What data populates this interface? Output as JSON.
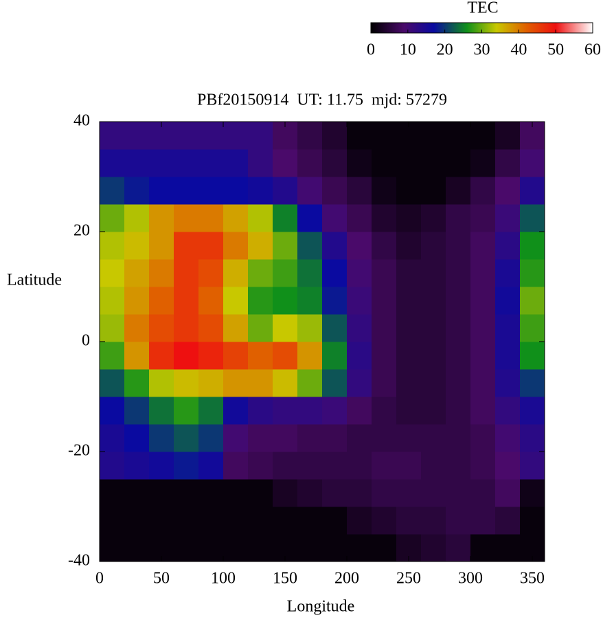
{
  "chart_data": {
    "type": "heatmap",
    "title": "PBf20150914  UT: 11.75  mjd: 57279",
    "x_label": "Longitude",
    "y_label": "Latitude",
    "xlim": [
      0,
      360
    ],
    "ylim": [
      -40,
      40
    ],
    "xticks": [
      0,
      50,
      100,
      150,
      200,
      250,
      300,
      350
    ],
    "yticks": [
      -40,
      -20,
      0,
      20,
      40
    ],
    "x": [
      10,
      30,
      50,
      70,
      90,
      110,
      130,
      150,
      170,
      190,
      210,
      230,
      250,
      270,
      290,
      310,
      330,
      350
    ],
    "y": [
      -37.5,
      -32.5,
      -27.5,
      -22.5,
      -17.5,
      -12.5,
      -7.5,
      -2.5,
      2.5,
      7.5,
      12.5,
      17.5,
      22.5,
      27.5,
      32.5,
      37.5
    ],
    "z": [
      [
        1,
        1,
        1,
        1,
        1,
        1,
        1,
        1,
        1,
        1,
        1,
        1,
        3,
        4,
        5,
        1,
        1,
        1
      ],
      [
        1,
        1,
        1,
        1,
        1,
        1,
        1,
        1,
        1,
        1,
        3,
        4,
        5,
        5,
        6,
        6,
        5,
        1
      ],
      [
        1,
        1,
        1,
        1,
        1,
        1,
        1,
        3,
        4,
        5,
        5,
        6,
        6,
        6,
        6,
        6,
        8,
        2
      ],
      [
        14,
        15,
        16,
        18,
        16,
        8,
        7,
        6,
        6,
        6,
        6,
        7,
        7,
        6,
        6,
        7,
        9,
        12
      ],
      [
        15,
        17,
        20,
        22,
        20,
        10,
        8,
        8,
        7,
        7,
        6,
        6,
        6,
        6,
        6,
        7,
        10,
        13
      ],
      [
        17,
        20,
        24,
        27,
        24,
        16,
        13,
        12,
        12,
        11,
        8,
        6,
        5,
        5,
        6,
        8,
        12,
        15
      ],
      [
        22,
        27,
        33,
        35,
        36,
        38,
        38,
        35,
        30,
        22,
        12,
        7,
        5,
        5,
        6,
        8,
        14,
        20
      ],
      [
        28,
        38,
        47,
        50,
        48,
        45,
        42,
        44,
        38,
        25,
        13,
        7,
        5,
        5,
        6,
        8,
        15,
        26
      ],
      [
        32,
        40,
        44,
        46,
        44,
        37,
        30,
        34,
        32,
        22,
        12,
        7,
        5,
        5,
        6,
        8,
        15,
        28
      ],
      [
        33,
        38,
        42,
        46,
        42,
        34,
        27,
        26,
        25,
        18,
        11,
        7,
        5,
        5,
        6,
        8,
        16,
        30
      ],
      [
        34,
        37,
        40,
        46,
        44,
        36,
        30,
        28,
        24,
        17,
        10,
        7,
        5,
        5,
        6,
        8,
        15,
        27
      ],
      [
        33,
        35,
        38,
        46,
        46,
        40,
        36,
        30,
        22,
        14,
        9,
        6,
        4,
        5,
        6,
        8,
        13,
        26
      ],
      [
        30,
        33,
        38,
        40,
        40,
        37,
        33,
        25,
        17,
        10,
        7,
        4,
        3,
        4,
        6,
        7,
        11,
        22
      ],
      [
        20,
        18,
        17,
        17,
        17,
        17,
        16,
        14,
        10,
        7,
        5,
        2,
        1,
        1,
        3,
        6,
        9,
        14
      ],
      [
        15,
        15,
        15,
        15,
        15,
        15,
        12,
        9,
        7,
        5,
        2,
        1,
        1,
        1,
        1,
        2,
        6,
        10
      ],
      [
        12,
        12,
        12,
        12,
        12,
        12,
        12,
        8,
        6,
        4,
        1,
        1,
        1,
        1,
        1,
        1,
        3,
        8
      ]
    ],
    "colorbar": {
      "title": "TEC",
      "lim": [
        0,
        60
      ],
      "ticks": [
        0,
        10,
        20,
        30,
        40,
        50,
        60
      ],
      "colorscale": [
        {
          "value": 0,
          "color": "#000000"
        },
        {
          "value": 9,
          "color": "#4a0a6a"
        },
        {
          "value": 17,
          "color": "#0a0aa0"
        },
        {
          "value": 26,
          "color": "#10901a"
        },
        {
          "value": 34,
          "color": "#c8c800"
        },
        {
          "value": 42,
          "color": "#e06000"
        },
        {
          "value": 50,
          "color": "#ee1010"
        },
        {
          "value": 60,
          "color": "#ffffff"
        }
      ]
    }
  }
}
